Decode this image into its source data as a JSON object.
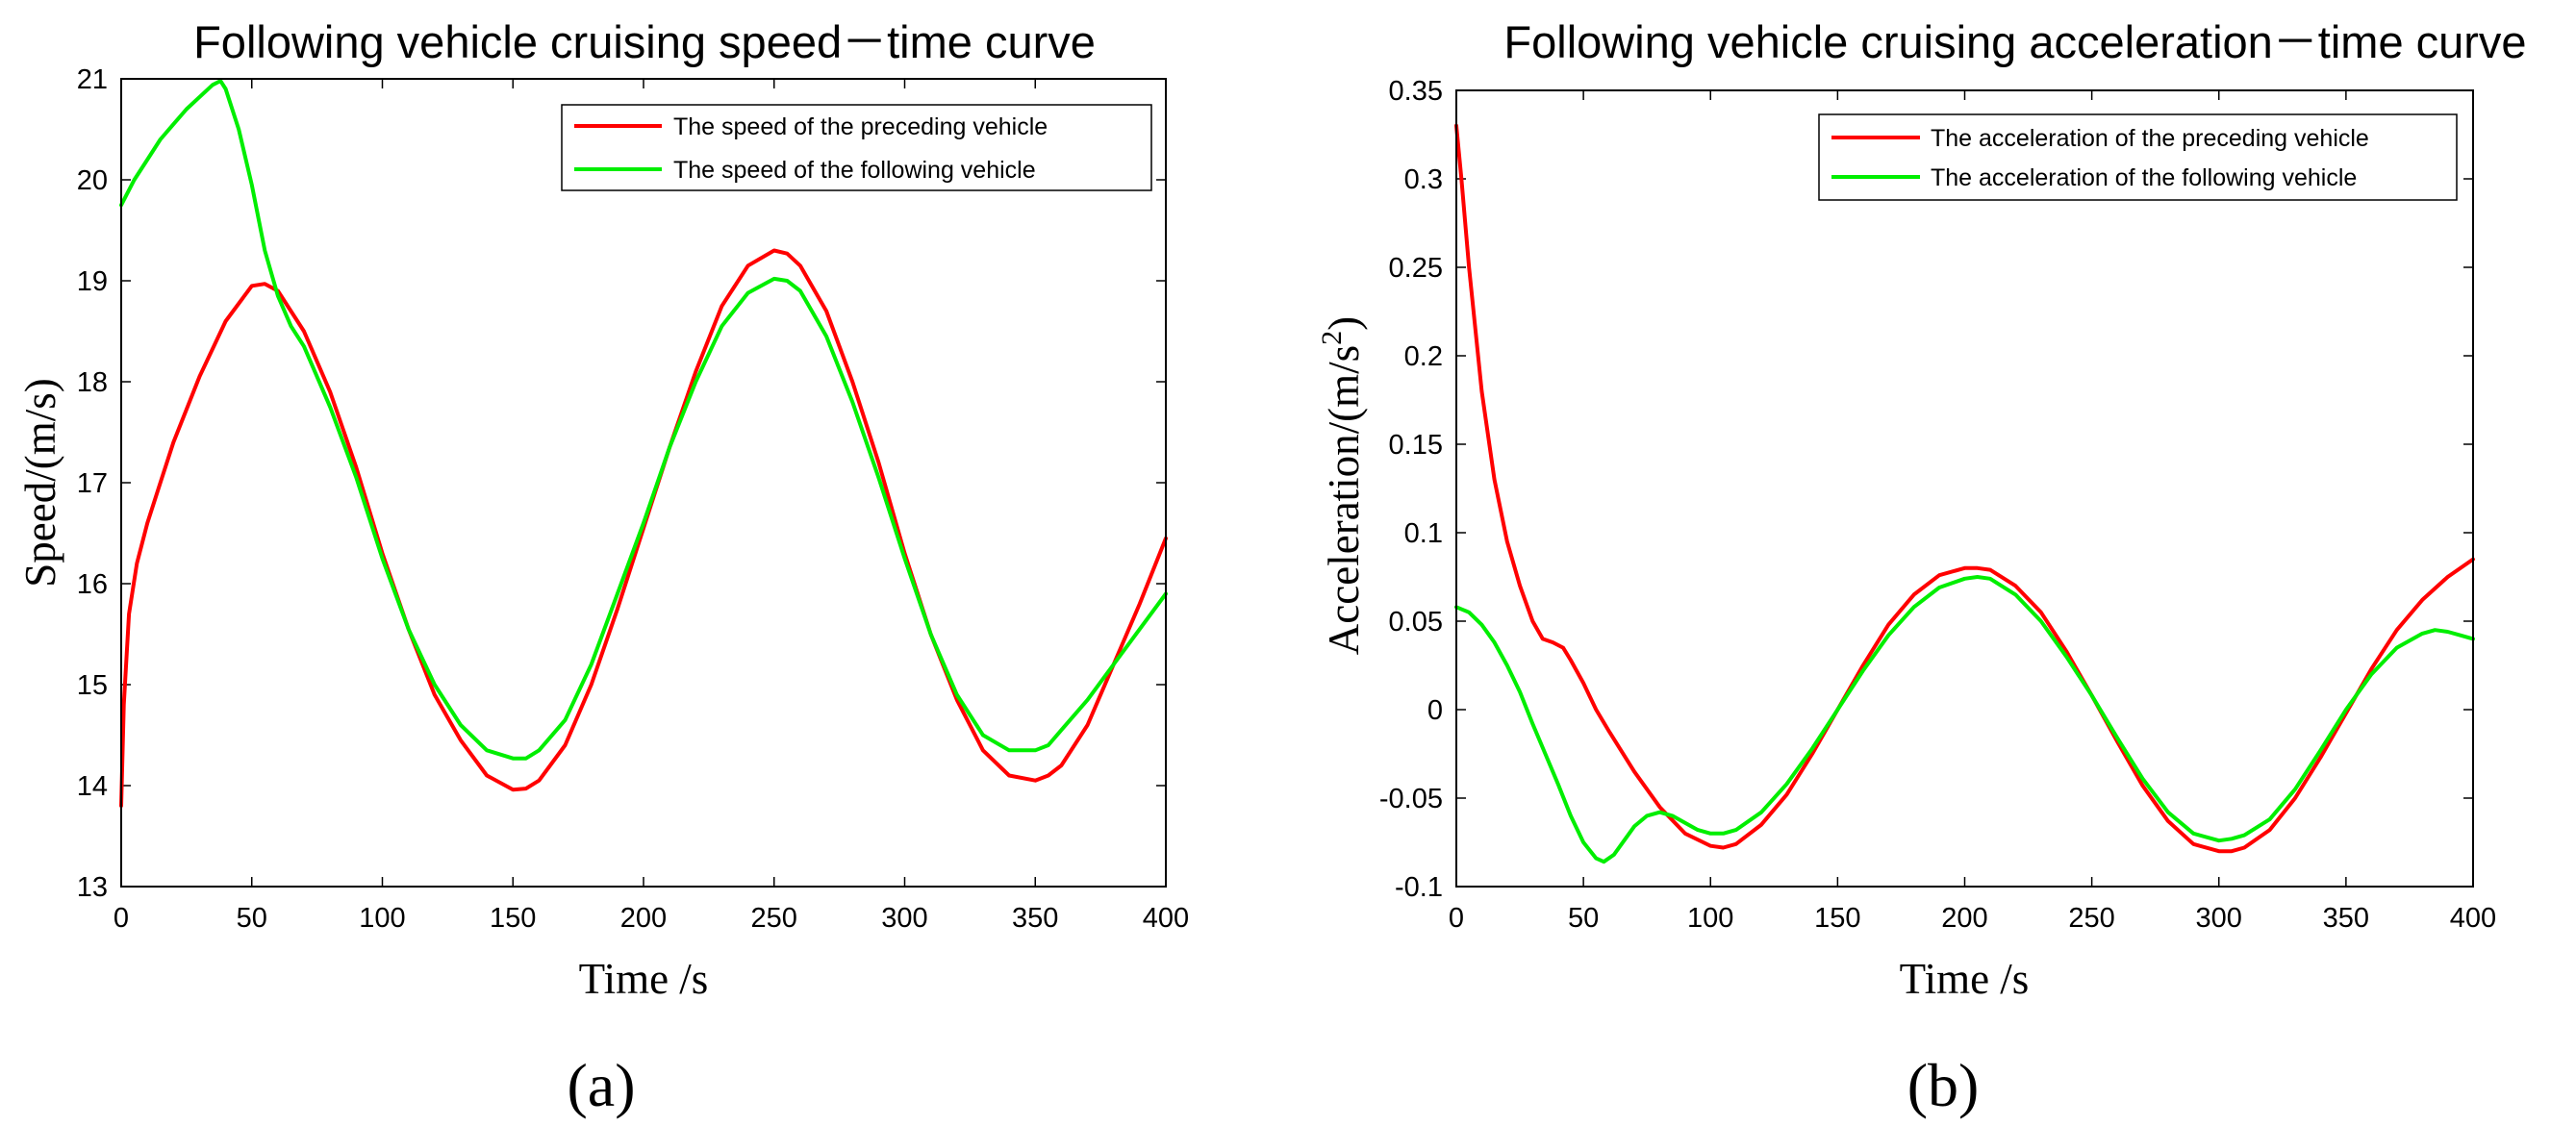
{
  "chart_data": [
    {
      "type": "line",
      "panel_label": "(a)",
      "title": "Following vehicle cruising speed－time curve",
      "xlabel": "Time /s",
      "ylabel": "Speed/(m/s)",
      "xlim": [
        0,
        400
      ],
      "ylim": [
        13,
        21
      ],
      "xticks": [
        "0",
        "50",
        "100",
        "150",
        "200",
        "250",
        "300",
        "350",
        "400"
      ],
      "yticks": [
        "13",
        "14",
        "15",
        "16",
        "17",
        "18",
        "19",
        "20",
        "21"
      ],
      "legend_location": "top-right",
      "series": [
        {
          "name": "The speed of the preceding vehicle",
          "color": "#ff0000",
          "x": [
            0,
            1,
            3,
            6,
            10,
            15,
            20,
            30,
            40,
            50,
            55,
            60,
            70,
            80,
            90,
            100,
            110,
            120,
            130,
            140,
            150,
            155,
            160,
            170,
            180,
            190,
            200,
            210,
            220,
            230,
            240,
            250,
            255,
            260,
            270,
            280,
            290,
            300,
            310,
            320,
            330,
            340,
            350,
            355,
            360,
            370,
            380,
            390,
            400
          ],
          "y": [
            13.8,
            14.8,
            15.7,
            16.2,
            16.6,
            17.0,
            17.4,
            18.05,
            18.6,
            18.95,
            18.97,
            18.9,
            18.5,
            17.9,
            17.15,
            16.3,
            15.55,
            14.9,
            14.45,
            14.1,
            13.96,
            13.97,
            14.05,
            14.4,
            15.0,
            15.75,
            16.55,
            17.35,
            18.1,
            18.75,
            19.15,
            19.3,
            19.27,
            19.15,
            18.7,
            18.0,
            17.2,
            16.3,
            15.5,
            14.85,
            14.35,
            14.1,
            14.05,
            14.1,
            14.2,
            14.6,
            15.2,
            15.8,
            16.45
          ]
        },
        {
          "name": "The speed of the following vehicle",
          "color": "#00ee00",
          "x": [
            0,
            5,
            10,
            15,
            20,
            25,
            30,
            35,
            38,
            40,
            45,
            50,
            55,
            60,
            65,
            70,
            80,
            90,
            100,
            110,
            120,
            130,
            140,
            150,
            155,
            160,
            170,
            180,
            190,
            200,
            210,
            220,
            230,
            240,
            250,
            255,
            260,
            270,
            280,
            290,
            300,
            310,
            320,
            330,
            340,
            350,
            355,
            360,
            370,
            380,
            390,
            400
          ],
          "y": [
            19.75,
            20.0,
            20.2,
            20.4,
            20.55,
            20.7,
            20.82,
            20.94,
            20.98,
            20.9,
            20.5,
            19.95,
            19.3,
            18.85,
            18.55,
            18.35,
            17.75,
            17.05,
            16.25,
            15.55,
            15.0,
            14.6,
            14.35,
            14.27,
            14.27,
            14.35,
            14.65,
            15.2,
            15.9,
            16.6,
            17.35,
            18.0,
            18.55,
            18.88,
            19.02,
            19.0,
            18.9,
            18.45,
            17.8,
            17.05,
            16.25,
            15.5,
            14.9,
            14.5,
            14.35,
            14.35,
            14.4,
            14.55,
            14.85,
            15.2,
            15.55,
            15.9
          ]
        }
      ]
    },
    {
      "type": "line",
      "panel_label": "(b)",
      "title": "Following vehicle cruising acceleration－time curve",
      "xlabel": "Time /s",
      "ylabel_main": "Acceleration/(m/s",
      "ylabel_sup": "2",
      "ylabel_end": ")",
      "xlim": [
        0,
        400
      ],
      "ylim": [
        -0.1,
        0.35
      ],
      "xticks": [
        "0",
        "50",
        "100",
        "150",
        "200",
        "250",
        "300",
        "350",
        "400"
      ],
      "yticks": [
        "-0.1",
        "-0.05",
        "0",
        "0.05",
        "0.1",
        "0.15",
        "0.2",
        "0.25",
        "0.3",
        "0.35"
      ],
      "legend_location": "top-right",
      "series": [
        {
          "name": "The acceleration of the preceding vehicle",
          "color": "#ff0000",
          "x": [
            0,
            2,
            5,
            10,
            15,
            20,
            25,
            30,
            34,
            38,
            42,
            45,
            50,
            55,
            60,
            70,
            80,
            90,
            100,
            105,
            110,
            120,
            130,
            140,
            150,
            160,
            170,
            180,
            190,
            200,
            205,
            210,
            220,
            230,
            240,
            250,
            260,
            270,
            280,
            290,
            300,
            305,
            310,
            320,
            330,
            340,
            350,
            360,
            370,
            380,
            390,
            400
          ],
          "y": [
            0.33,
            0.3,
            0.25,
            0.18,
            0.13,
            0.095,
            0.07,
            0.05,
            0.04,
            0.038,
            0.035,
            0.028,
            0.015,
            0.0,
            -0.012,
            -0.035,
            -0.055,
            -0.07,
            -0.077,
            -0.078,
            -0.076,
            -0.065,
            -0.048,
            -0.025,
            0.0,
            0.025,
            0.048,
            0.065,
            0.076,
            0.08,
            0.08,
            0.079,
            0.07,
            0.055,
            0.033,
            0.008,
            -0.018,
            -0.043,
            -0.063,
            -0.076,
            -0.08,
            -0.08,
            -0.078,
            -0.068,
            -0.05,
            -0.027,
            -0.002,
            0.023,
            0.045,
            0.062,
            0.075,
            0.085
          ]
        },
        {
          "name": "The acceleration of the following vehicle",
          "color": "#00ee00",
          "x": [
            0,
            5,
            10,
            15,
            20,
            25,
            30,
            35,
            40,
            45,
            50,
            55,
            58,
            62,
            66,
            70,
            75,
            80,
            85,
            90,
            95,
            100,
            105,
            110,
            120,
            130,
            140,
            150,
            160,
            170,
            180,
            190,
            200,
            205,
            210,
            220,
            230,
            240,
            250,
            260,
            270,
            280,
            290,
            300,
            305,
            310,
            320,
            330,
            340,
            350,
            360,
            370,
            380,
            385,
            390,
            395,
            400
          ],
          "y": [
            0.058,
            0.055,
            0.048,
            0.038,
            0.025,
            0.01,
            -0.008,
            -0.025,
            -0.042,
            -0.06,
            -0.075,
            -0.084,
            -0.086,
            -0.082,
            -0.074,
            -0.066,
            -0.06,
            -0.058,
            -0.06,
            -0.064,
            -0.068,
            -0.07,
            -0.07,
            -0.068,
            -0.058,
            -0.042,
            -0.022,
            0.0,
            0.022,
            0.042,
            0.058,
            0.069,
            0.074,
            0.075,
            0.074,
            0.065,
            0.05,
            0.03,
            0.008,
            -0.016,
            -0.039,
            -0.058,
            -0.07,
            -0.074,
            -0.073,
            -0.071,
            -0.062,
            -0.045,
            -0.023,
            0.0,
            0.02,
            0.035,
            0.043,
            0.045,
            0.044,
            0.042,
            0.04
          ]
        }
      ]
    }
  ]
}
